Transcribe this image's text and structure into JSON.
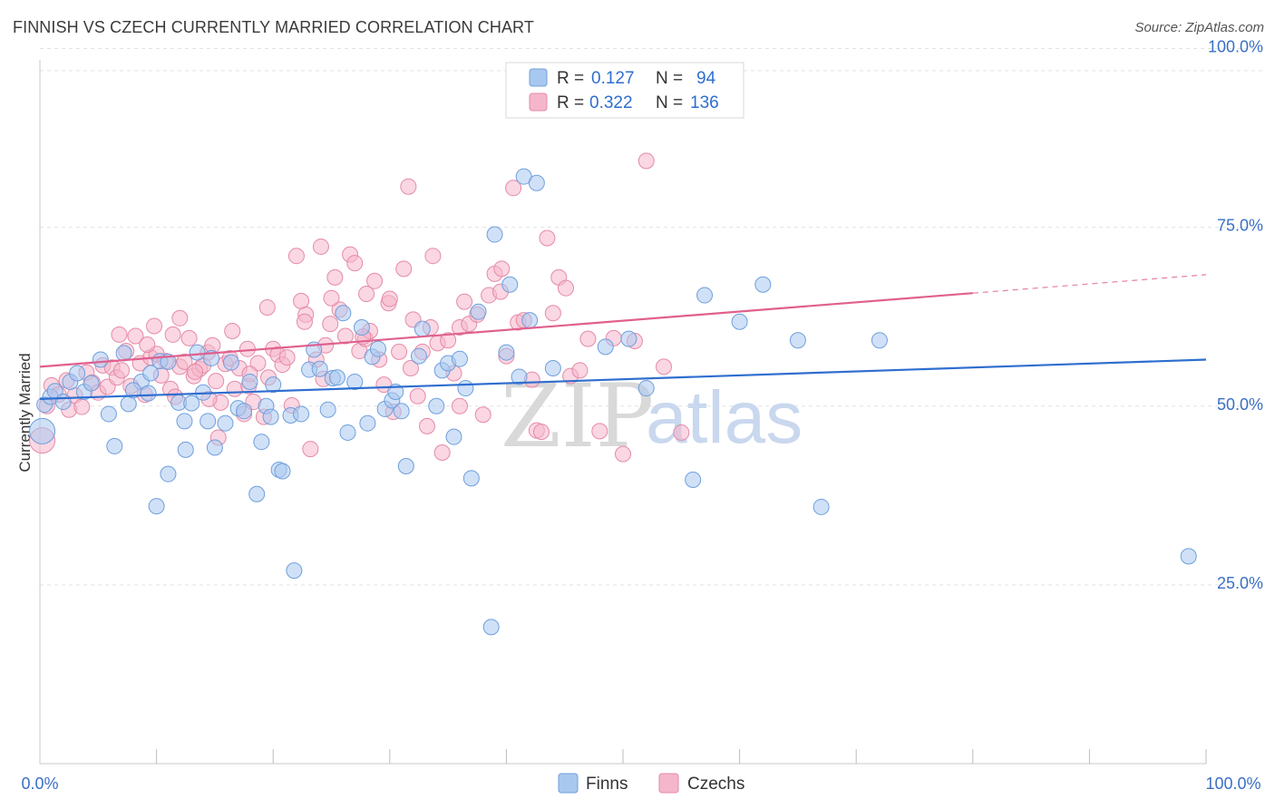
{
  "header": {
    "title": "FINNISH VS CZECH CURRENTLY MARRIED CORRELATION CHART",
    "source": "Source: ZipAtlas.com"
  },
  "colors": {
    "finns_fill": "#a9c8f0",
    "finns_stroke": "#6f9fdc",
    "finns_line": "#2f6ecf",
    "czechs_fill": "#f5b6cb",
    "czechs_stroke": "#e58aa8",
    "czechs_line": "#e0608e",
    "grid": "#e3e3e3",
    "axis_label": "#3a6fc4"
  },
  "watermark": {
    "zip": "ZIP",
    "atlas": "atlas"
  },
  "legend": {
    "r_label": "R =",
    "n_label": "N =",
    "rows": [
      {
        "series": "finns",
        "r": "0.127",
        "n": "94"
      },
      {
        "series": "czechs",
        "r": "0.322",
        "n": "136"
      }
    ]
  },
  "bottom_legend": [
    {
      "series": "finns",
      "label": "Finns"
    },
    {
      "series": "czechs",
      "label": "Czechs"
    }
  ],
  "chart_data": {
    "type": "scatter",
    "title": "FINNISH VS CZECH CURRENTLY MARRIED CORRELATION CHART",
    "xlabel": "",
    "ylabel": "Currently Married",
    "xlim": [
      0,
      100
    ],
    "ylim": [
      0,
      104
    ],
    "x_tick_labels": [
      "0.0%",
      "100.0%"
    ],
    "y_ticks": [
      {
        "value": 25,
        "label": "25.0%"
      },
      {
        "value": 50,
        "label": "50.0%"
      },
      {
        "value": 75,
        "label": "75.0%"
      },
      {
        "value": 100,
        "label": "100.0%"
      }
    ],
    "grid": true,
    "legend_position": "top-center",
    "series": [
      {
        "name": "Finns",
        "trend": {
          "x": [
            0,
            100
          ],
          "y": [
            51.0,
            56.5
          ]
        },
        "points": [
          [
            0.2,
            46.5
          ],
          [
            0.4,
            50.2
          ],
          [
            0.9,
            51.3
          ],
          [
            1.3,
            52.1
          ],
          [
            2.0,
            50.6
          ],
          [
            2.6,
            53.4
          ],
          [
            3.2,
            54.6
          ],
          [
            3.8,
            52.0
          ],
          [
            4.4,
            53.2
          ],
          [
            5.2,
            56.5
          ],
          [
            5.9,
            48.9
          ],
          [
            6.4,
            44.4
          ],
          [
            7.2,
            57.4
          ],
          [
            7.6,
            50.3
          ],
          [
            8.7,
            53.4
          ],
          [
            9.3,
            51.8
          ],
          [
            9.5,
            54.6
          ],
          [
            10.0,
            36.0
          ],
          [
            10.3,
            56.3
          ],
          [
            11.0,
            56.2
          ],
          [
            11.0,
            40.5
          ],
          [
            11.9,
            50.5
          ],
          [
            12.4,
            47.9
          ],
          [
            12.5,
            43.9
          ],
          [
            13.0,
            50.4
          ],
          [
            13.5,
            57.5
          ],
          [
            14.0,
            51.9
          ],
          [
            14.4,
            47.9
          ],
          [
            14.7,
            56.7
          ],
          [
            15.0,
            44.2
          ],
          [
            15.9,
            47.6
          ],
          [
            16.4,
            56.1
          ],
          [
            17.0,
            49.7
          ],
          [
            17.5,
            49.3
          ],
          [
            18.0,
            53.4
          ],
          [
            18.6,
            37.7
          ],
          [
            19.0,
            45.0
          ],
          [
            19.4,
            50.0
          ],
          [
            19.8,
            48.5
          ],
          [
            20.5,
            41.1
          ],
          [
            20.8,
            40.9
          ],
          [
            21.5,
            48.7
          ],
          [
            21.8,
            27.0
          ],
          [
            22.4,
            48.9
          ],
          [
            23.1,
            55.1
          ],
          [
            23.5,
            57.9
          ],
          [
            24.0,
            55.2
          ],
          [
            24.7,
            49.5
          ],
          [
            25.1,
            53.9
          ],
          [
            25.5,
            54.0
          ],
          [
            26.0,
            63.0
          ],
          [
            26.4,
            46.3
          ],
          [
            27.0,
            53.4
          ],
          [
            27.6,
            61.0
          ],
          [
            28.1,
            47.6
          ],
          [
            28.5,
            56.9
          ],
          [
            29.0,
            58.0
          ],
          [
            29.6,
            49.6
          ],
          [
            30.2,
            50.8
          ],
          [
            31.0,
            49.3
          ],
          [
            31.4,
            41.6
          ],
          [
            32.5,
            57.0
          ],
          [
            32.8,
            60.8
          ],
          [
            34.0,
            50.0
          ],
          [
            34.5,
            55.0
          ],
          [
            35.0,
            56.0
          ],
          [
            35.5,
            45.7
          ],
          [
            36.0,
            56.6
          ],
          [
            36.5,
            52.5
          ],
          [
            37.0,
            39.9
          ],
          [
            37.6,
            63.2
          ],
          [
            38.7,
            19.1
          ],
          [
            39.0,
            74.0
          ],
          [
            40.3,
            67.0
          ],
          [
            41.1,
            54.1
          ],
          [
            41.5,
            82.1
          ],
          [
            42.0,
            62.0
          ],
          [
            42.6,
            81.2
          ],
          [
            48.5,
            58.3
          ],
          [
            50.5,
            59.4
          ],
          [
            52.0,
            52.5
          ],
          [
            56.0,
            39.7
          ],
          [
            57.0,
            65.5
          ],
          [
            60.0,
            61.8
          ],
          [
            62.0,
            67.0
          ],
          [
            65.0,
            59.2
          ],
          [
            67.0,
            35.9
          ],
          [
            72.0,
            59.2
          ],
          [
            98.5,
            29.0
          ],
          [
            40.0,
            57.5
          ],
          [
            44.0,
            55.3
          ],
          [
            30.5,
            52.0
          ],
          [
            20.0,
            53.0
          ],
          [
            8.0,
            52.2
          ]
        ]
      },
      {
        "name": "Czechs",
        "trend": {
          "x": [
            0,
            80
          ],
          "y": [
            55.5,
            65.8
          ]
        },
        "points": [
          [
            0.2,
            45.2
          ],
          [
            0.6,
            50.0
          ],
          [
            1.0,
            52.9
          ],
          [
            1.6,
            51.6
          ],
          [
            2.3,
            53.6
          ],
          [
            2.5,
            49.5
          ],
          [
            3.0,
            51.5
          ],
          [
            3.6,
            49.9
          ],
          [
            4.0,
            54.7
          ],
          [
            4.5,
            53.3
          ],
          [
            5.0,
            51.9
          ],
          [
            5.4,
            55.7
          ],
          [
            5.8,
            52.7
          ],
          [
            6.2,
            55.4
          ],
          [
            6.6,
            54.0
          ],
          [
            7.0,
            55.0
          ],
          [
            7.4,
            57.7
          ],
          [
            7.8,
            52.8
          ],
          [
            8.2,
            59.8
          ],
          [
            8.6,
            56.0
          ],
          [
            9.0,
            51.6
          ],
          [
            9.5,
            56.8
          ],
          [
            10.0,
            57.3
          ],
          [
            10.4,
            54.3
          ],
          [
            10.8,
            56.3
          ],
          [
            11.2,
            52.4
          ],
          [
            11.6,
            51.3
          ],
          [
            12.0,
            55.5
          ],
          [
            12.4,
            56.2
          ],
          [
            12.8,
            59.5
          ],
          [
            13.2,
            54.2
          ],
          [
            13.7,
            55.2
          ],
          [
            14.0,
            55.7
          ],
          [
            14.4,
            57.5
          ],
          [
            14.8,
            58.5
          ],
          [
            15.1,
            53.5
          ],
          [
            15.5,
            50.5
          ],
          [
            15.9,
            55.9
          ],
          [
            16.3,
            56.7
          ],
          [
            16.7,
            52.4
          ],
          [
            17.1,
            55.3
          ],
          [
            17.5,
            48.9
          ],
          [
            17.9,
            52.8
          ],
          [
            18.3,
            50.6
          ],
          [
            18.7,
            56.0
          ],
          [
            19.2,
            48.5
          ],
          [
            19.6,
            54.0
          ],
          [
            20.0,
            58.0
          ],
          [
            20.4,
            57.2
          ],
          [
            20.8,
            55.8
          ],
          [
            21.2,
            56.8
          ],
          [
            21.6,
            50.1
          ],
          [
            22.0,
            71.0
          ],
          [
            22.4,
            64.7
          ],
          [
            22.8,
            62.8
          ],
          [
            23.2,
            44.0
          ],
          [
            23.7,
            56.5
          ],
          [
            24.1,
            72.3
          ],
          [
            24.5,
            58.5
          ],
          [
            24.9,
            61.5
          ],
          [
            25.3,
            68.0
          ],
          [
            25.7,
            63.5
          ],
          [
            26.2,
            59.8
          ],
          [
            26.6,
            71.2
          ],
          [
            27.0,
            70.0
          ],
          [
            27.4,
            57.7
          ],
          [
            27.9,
            59.4
          ],
          [
            28.3,
            60.5
          ],
          [
            28.7,
            67.5
          ],
          [
            29.1,
            56.5
          ],
          [
            29.5,
            53.0
          ],
          [
            29.9,
            64.4
          ],
          [
            30.3,
            49.2
          ],
          [
            30.8,
            57.6
          ],
          [
            31.2,
            69.2
          ],
          [
            31.6,
            80.7
          ],
          [
            32.0,
            62.1
          ],
          [
            32.4,
            51.4
          ],
          [
            32.8,
            57.6
          ],
          [
            33.2,
            47.2
          ],
          [
            33.7,
            71.0
          ],
          [
            34.1,
            58.8
          ],
          [
            34.5,
            43.5
          ],
          [
            35.0,
            59.2
          ],
          [
            35.5,
            54.6
          ],
          [
            36.0,
            61.0
          ],
          [
            36.4,
            64.6
          ],
          [
            36.8,
            61.5
          ],
          [
            37.5,
            62.8
          ],
          [
            38.0,
            48.8
          ],
          [
            38.5,
            65.5
          ],
          [
            39.0,
            68.5
          ],
          [
            39.6,
            69.2
          ],
          [
            40.0,
            57.0
          ],
          [
            40.6,
            80.5
          ],
          [
            41.0,
            61.7
          ],
          [
            41.5,
            62.0
          ],
          [
            42.2,
            53.7
          ],
          [
            42.6,
            46.6
          ],
          [
            43.0,
            46.4
          ],
          [
            43.5,
            73.5
          ],
          [
            44.0,
            63.0
          ],
          [
            44.5,
            68.0
          ],
          [
            45.1,
            66.5
          ],
          [
            45.5,
            54.2
          ],
          [
            46.3,
            55.0
          ],
          [
            47.0,
            59.4
          ],
          [
            48.0,
            46.5
          ],
          [
            49.2,
            59.5
          ],
          [
            50.0,
            43.3
          ],
          [
            51.0,
            59.1
          ],
          [
            52.0,
            84.3
          ],
          [
            53.5,
            55.5
          ],
          [
            55.0,
            46.3
          ],
          [
            6.8,
            60.0
          ],
          [
            9.8,
            61.2
          ],
          [
            12.0,
            62.3
          ],
          [
            15.3,
            45.6
          ],
          [
            16.5,
            60.5
          ],
          [
            19.5,
            63.8
          ],
          [
            22.7,
            61.8
          ],
          [
            25.0,
            65.1
          ],
          [
            28.0,
            65.7
          ],
          [
            30.0,
            65.0
          ],
          [
            31.8,
            55.3
          ],
          [
            33.5,
            61.0
          ],
          [
            36.0,
            50.0
          ],
          [
            39.5,
            66.0
          ],
          [
            14.5,
            51.0
          ],
          [
            17.8,
            58.0
          ],
          [
            24.3,
            53.8
          ],
          [
            27.7,
            59.7
          ],
          [
            18.0,
            54.5
          ],
          [
            13.3,
            54.8
          ],
          [
            11.4,
            60.0
          ],
          [
            9.2,
            58.6
          ]
        ]
      }
    ]
  }
}
